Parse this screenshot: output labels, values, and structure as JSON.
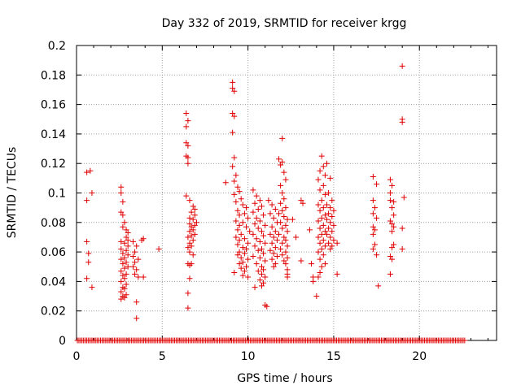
{
  "chart_data": {
    "type": "scatter",
    "title": "Day 332 of 2019, SRMTID for receiver krgg",
    "xlabel": "GPS time / hours",
    "ylabel": "SRMTID / TECUs",
    "xlim": [
      0,
      24.5
    ],
    "ylim": [
      0,
      0.2
    ],
    "xticks": [
      0,
      5,
      10,
      15,
      20
    ],
    "xtick_labels": [
      "0",
      "5",
      "10",
      "15",
      "20"
    ],
    "yticks": [
      0,
      0.02,
      0.04,
      0.06,
      0.08,
      0.1,
      0.12,
      0.14,
      0.16,
      0.18,
      0.2
    ],
    "ytick_labels": [
      "0",
      "0.02",
      "0.04",
      "0.06",
      "0.08",
      "0.1",
      "0.12",
      "0.14",
      "0.16",
      "0.18",
      "0.2"
    ],
    "grid": true,
    "marker": "+",
    "color": "#e00000",
    "baseline": {
      "y": 0,
      "x_start": 0.05,
      "x_end": 22.7
    },
    "points": [
      [
        0.6,
        0.114
      ],
      [
        0.8,
        0.115
      ],
      [
        0.6,
        0.095
      ],
      [
        0.9,
        0.1
      ],
      [
        0.6,
        0.067
      ],
      [
        0.7,
        0.059
      ],
      [
        0.7,
        0.053
      ],
      [
        0.6,
        0.042
      ],
      [
        0.9,
        0.036
      ],
      [
        2.6,
        0.104
      ],
      [
        2.6,
        0.1
      ],
      [
        2.7,
        0.094
      ],
      [
        2.6,
        0.087
      ],
      [
        2.7,
        0.085
      ],
      [
        2.8,
        0.08
      ],
      [
        2.7,
        0.077
      ],
      [
        2.9,
        0.075
      ],
      [
        3.0,
        0.073
      ],
      [
        2.9,
        0.07
      ],
      [
        3.0,
        0.068
      ],
      [
        2.6,
        0.067
      ],
      [
        2.8,
        0.066
      ],
      [
        3.0,
        0.064
      ],
      [
        2.6,
        0.062
      ],
      [
        2.9,
        0.061
      ],
      [
        2.7,
        0.059
      ],
      [
        3.0,
        0.058
      ],
      [
        2.8,
        0.056
      ],
      [
        2.6,
        0.055
      ],
      [
        2.9,
        0.053
      ],
      [
        2.7,
        0.052
      ],
      [
        3.0,
        0.05
      ],
      [
        2.8,
        0.049
      ],
      [
        2.6,
        0.047
      ],
      [
        2.9,
        0.045
      ],
      [
        2.7,
        0.044
      ],
      [
        2.8,
        0.042
      ],
      [
        2.6,
        0.04
      ],
      [
        2.9,
        0.038
      ],
      [
        2.7,
        0.036
      ],
      [
        2.8,
        0.035
      ],
      [
        2.6,
        0.033
      ],
      [
        2.9,
        0.031
      ],
      [
        2.7,
        0.03
      ],
      [
        2.8,
        0.029
      ],
      [
        2.6,
        0.028
      ],
      [
        3.3,
        0.067
      ],
      [
        3.5,
        0.064
      ],
      [
        3.4,
        0.06
      ],
      [
        3.3,
        0.057
      ],
      [
        3.6,
        0.055
      ],
      [
        3.4,
        0.053
      ],
      [
        3.3,
        0.05
      ],
      [
        3.5,
        0.048
      ],
      [
        3.4,
        0.045
      ],
      [
        3.6,
        0.043
      ],
      [
        3.5,
        0.026
      ],
      [
        3.5,
        0.015
      ],
      [
        3.9,
        0.069
      ],
      [
        3.8,
        0.068
      ],
      [
        3.9,
        0.043
      ],
      [
        4.8,
        0.062
      ],
      [
        6.4,
        0.154
      ],
      [
        6.5,
        0.149
      ],
      [
        6.4,
        0.145
      ],
      [
        6.4,
        0.134
      ],
      [
        6.5,
        0.132
      ],
      [
        6.4,
        0.125
      ],
      [
        6.5,
        0.124
      ],
      [
        6.5,
        0.12
      ],
      [
        6.4,
        0.098
      ],
      [
        6.6,
        0.095
      ],
      [
        6.8,
        0.091
      ],
      [
        6.9,
        0.089
      ],
      [
        6.7,
        0.087
      ],
      [
        6.9,
        0.085
      ],
      [
        6.6,
        0.083
      ],
      [
        6.8,
        0.082
      ],
      [
        7.0,
        0.08
      ],
      [
        6.6,
        0.079
      ],
      [
        6.9,
        0.078
      ],
      [
        6.7,
        0.077
      ],
      [
        6.8,
        0.075
      ],
      [
        6.6,
        0.074
      ],
      [
        6.9,
        0.072
      ],
      [
        6.7,
        0.071
      ],
      [
        6.5,
        0.07
      ],
      [
        6.8,
        0.068
      ],
      [
        6.6,
        0.066
      ],
      [
        6.7,
        0.064
      ],
      [
        6.5,
        0.063
      ],
      [
        6.6,
        0.06
      ],
      [
        6.8,
        0.058
      ],
      [
        6.5,
        0.052
      ],
      [
        6.6,
        0.051
      ],
      [
        6.7,
        0.052
      ],
      [
        6.6,
        0.042
      ],
      [
        6.5,
        0.032
      ],
      [
        6.5,
        0.022
      ],
      [
        8.7,
        0.107
      ],
      [
        9.1,
        0.175
      ],
      [
        9.1,
        0.171
      ],
      [
        9.2,
        0.169
      ],
      [
        9.1,
        0.154
      ],
      [
        9.2,
        0.152
      ],
      [
        9.1,
        0.141
      ],
      [
        9.2,
        0.124
      ],
      [
        9.1,
        0.118
      ],
      [
        9.3,
        0.112
      ],
      [
        9.2,
        0.108
      ],
      [
        9.4,
        0.104
      ],
      [
        9.5,
        0.101
      ],
      [
        9.2,
        0.099
      ],
      [
        9.6,
        0.096
      ],
      [
        9.3,
        0.094
      ],
      [
        9.7,
        0.092
      ],
      [
        9.9,
        0.09
      ],
      [
        9.4,
        0.088
      ],
      [
        9.8,
        0.086
      ],
      [
        9.5,
        0.085
      ],
      [
        10.0,
        0.083
      ],
      [
        9.3,
        0.081
      ],
      [
        9.7,
        0.08
      ],
      [
        9.5,
        0.078
      ],
      [
        9.9,
        0.077
      ],
      [
        9.4,
        0.075
      ],
      [
        10.1,
        0.074
      ],
      [
        9.6,
        0.072
      ],
      [
        9.3,
        0.07
      ],
      [
        9.8,
        0.069
      ],
      [
        9.5,
        0.068
      ],
      [
        10.0,
        0.066
      ],
      [
        9.4,
        0.065
      ],
      [
        9.7,
        0.063
      ],
      [
        9.9,
        0.062
      ],
      [
        9.5,
        0.06
      ],
      [
        9.8,
        0.059
      ],
      [
        9.4,
        0.058
      ],
      [
        9.6,
        0.056
      ],
      [
        10.0,
        0.055
      ],
      [
        9.7,
        0.053
      ],
      [
        9.5,
        0.052
      ],
      [
        9.9,
        0.05
      ],
      [
        9.6,
        0.049
      ],
      [
        9.8,
        0.047
      ],
      [
        9.2,
        0.046
      ],
      [
        9.7,
        0.044
      ],
      [
        10.0,
        0.043
      ],
      [
        10.3,
        0.102
      ],
      [
        10.5,
        0.098
      ],
      [
        10.7,
        0.095
      ],
      [
        10.4,
        0.093
      ],
      [
        10.8,
        0.091
      ],
      [
        10.6,
        0.089
      ],
      [
        10.3,
        0.087
      ],
      [
        10.9,
        0.085
      ],
      [
        10.5,
        0.083
      ],
      [
        10.7,
        0.081
      ],
      [
        10.4,
        0.079
      ],
      [
        11.0,
        0.078
      ],
      [
        10.6,
        0.076
      ],
      [
        10.8,
        0.074
      ],
      [
        10.3,
        0.072
      ],
      [
        10.9,
        0.071
      ],
      [
        10.5,
        0.069
      ],
      [
        10.7,
        0.067
      ],
      [
        11.0,
        0.066
      ],
      [
        10.4,
        0.064
      ],
      [
        10.8,
        0.062
      ],
      [
        10.6,
        0.061
      ],
      [
        10.9,
        0.059
      ],
      [
        10.3,
        0.057
      ],
      [
        10.7,
        0.056
      ],
      [
        11.0,
        0.054
      ],
      [
        10.5,
        0.052
      ],
      [
        10.8,
        0.05
      ],
      [
        10.9,
        0.048
      ],
      [
        10.6,
        0.047
      ],
      [
        10.8,
        0.045
      ],
      [
        11.0,
        0.043
      ],
      [
        10.7,
        0.041
      ],
      [
        10.9,
        0.039
      ],
      [
        10.8,
        0.037
      ],
      [
        10.4,
        0.036
      ],
      [
        11.0,
        0.024
      ],
      [
        11.1,
        0.023
      ],
      [
        11.2,
        0.095
      ],
      [
        11.4,
        0.092
      ],
      [
        11.6,
        0.089
      ],
      [
        11.3,
        0.086
      ],
      [
        11.5,
        0.083
      ],
      [
        11.7,
        0.08
      ],
      [
        11.4,
        0.077
      ],
      [
        11.6,
        0.074
      ],
      [
        11.3,
        0.072
      ],
      [
        11.5,
        0.07
      ],
      [
        11.7,
        0.068
      ],
      [
        11.4,
        0.066
      ],
      [
        11.6,
        0.063
      ],
      [
        11.3,
        0.061
      ],
      [
        11.5,
        0.059
      ],
      [
        11.7,
        0.057
      ],
      [
        11.4,
        0.055
      ],
      [
        11.6,
        0.052
      ],
      [
        11.5,
        0.05
      ],
      [
        11.8,
        0.123
      ],
      [
        12.0,
        0.121
      ],
      [
        11.9,
        0.119
      ],
      [
        12.1,
        0.114
      ],
      [
        12.0,
        0.137
      ],
      [
        12.2,
        0.109
      ],
      [
        11.9,
        0.105
      ],
      [
        12.0,
        0.1
      ],
      [
        12.1,
        0.096
      ],
      [
        11.9,
        0.093
      ],
      [
        12.2,
        0.09
      ],
      [
        12.0,
        0.088
      ],
      [
        11.8,
        0.086
      ],
      [
        12.1,
        0.084
      ],
      [
        12.3,
        0.082
      ],
      [
        11.9,
        0.08
      ],
      [
        12.2,
        0.078
      ],
      [
        12.0,
        0.076
      ],
      [
        12.3,
        0.074
      ],
      [
        11.8,
        0.072
      ],
      [
        12.1,
        0.07
      ],
      [
        12.2,
        0.068
      ],
      [
        12.0,
        0.066
      ],
      [
        12.3,
        0.064
      ],
      [
        11.9,
        0.062
      ],
      [
        12.2,
        0.06
      ],
      [
        12.0,
        0.058
      ],
      [
        12.3,
        0.056
      ],
      [
        12.1,
        0.054
      ],
      [
        12.2,
        0.052
      ],
      [
        12.3,
        0.048
      ],
      [
        12.3,
        0.045
      ],
      [
        12.3,
        0.043
      ],
      [
        12.6,
        0.082
      ],
      [
        12.8,
        0.07
      ],
      [
        13.1,
        0.095
      ],
      [
        13.2,
        0.093
      ],
      [
        13.1,
        0.054
      ],
      [
        13.6,
        0.075
      ],
      [
        13.7,
        0.052
      ],
      [
        13.8,
        0.043
      ],
      [
        13.8,
        0.04
      ],
      [
        14.0,
        0.03
      ],
      [
        14.3,
        0.125
      ],
      [
        14.4,
        0.118
      ],
      [
        14.2,
        0.115
      ],
      [
        14.5,
        0.112
      ],
      [
        14.1,
        0.109
      ],
      [
        14.4,
        0.105
      ],
      [
        14.2,
        0.102
      ],
      [
        14.5,
        0.099
      ],
      [
        14.3,
        0.095
      ],
      [
        14.1,
        0.092
      ],
      [
        14.4,
        0.09
      ],
      [
        14.2,
        0.088
      ],
      [
        14.5,
        0.085
      ],
      [
        14.3,
        0.083
      ],
      [
        14.1,
        0.081
      ],
      [
        14.4,
        0.078
      ],
      [
        14.2,
        0.076
      ],
      [
        14.5,
        0.074
      ],
      [
        14.3,
        0.072
      ],
      [
        14.1,
        0.07
      ],
      [
        14.4,
        0.068
      ],
      [
        14.2,
        0.066
      ],
      [
        14.5,
        0.064
      ],
      [
        14.3,
        0.062
      ],
      [
        14.1,
        0.06
      ],
      [
        14.4,
        0.058
      ],
      [
        14.2,
        0.055
      ],
      [
        14.5,
        0.052
      ],
      [
        14.3,
        0.05
      ],
      [
        14.2,
        0.046
      ],
      [
        14.1,
        0.043
      ],
      [
        14.6,
        0.12
      ],
      [
        14.8,
        0.11
      ],
      [
        14.7,
        0.1
      ],
      [
        14.9,
        0.095
      ],
      [
        14.6,
        0.092
      ],
      [
        14.8,
        0.09
      ],
      [
        15.0,
        0.088
      ],
      [
        14.7,
        0.086
      ],
      [
        14.9,
        0.084
      ],
      [
        14.6,
        0.082
      ],
      [
        14.8,
        0.08
      ],
      [
        15.0,
        0.078
      ],
      [
        14.7,
        0.076
      ],
      [
        14.9,
        0.074
      ],
      [
        14.6,
        0.072
      ],
      [
        14.8,
        0.07
      ],
      [
        15.0,
        0.068
      ],
      [
        14.7,
        0.066
      ],
      [
        14.9,
        0.064
      ],
      [
        14.8,
        0.062
      ],
      [
        15.2,
        0.066
      ],
      [
        15.2,
        0.045
      ],
      [
        17.3,
        0.111
      ],
      [
        17.5,
        0.106
      ],
      [
        17.3,
        0.095
      ],
      [
        17.4,
        0.09
      ],
      [
        17.3,
        0.086
      ],
      [
        17.5,
        0.083
      ],
      [
        17.3,
        0.077
      ],
      [
        17.4,
        0.075
      ],
      [
        17.3,
        0.072
      ],
      [
        17.4,
        0.065
      ],
      [
        17.3,
        0.062
      ],
      [
        17.5,
        0.058
      ],
      [
        17.6,
        0.037
      ],
      [
        18.3,
        0.109
      ],
      [
        18.4,
        0.105
      ],
      [
        18.3,
        0.1
      ],
      [
        18.3,
        0.095
      ],
      [
        18.5,
        0.094
      ],
      [
        18.4,
        0.09
      ],
      [
        18.5,
        0.085
      ],
      [
        18.3,
        0.081
      ],
      [
        18.4,
        0.079
      ],
      [
        18.5,
        0.077
      ],
      [
        18.4,
        0.074
      ],
      [
        18.5,
        0.065
      ],
      [
        18.4,
        0.063
      ],
      [
        18.3,
        0.057
      ],
      [
        18.4,
        0.055
      ],
      [
        18.3,
        0.045
      ],
      [
        19.0,
        0.186
      ],
      [
        19.0,
        0.15
      ],
      [
        19.0,
        0.148
      ],
      [
        19.1,
        0.097
      ],
      [
        19.0,
        0.076
      ],
      [
        19.0,
        0.062
      ]
    ]
  }
}
